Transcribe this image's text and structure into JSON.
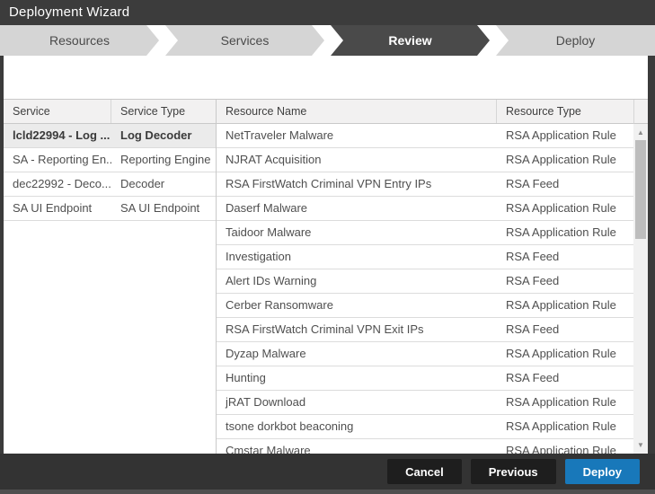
{
  "window": {
    "title": "Deployment Wizard"
  },
  "wizard": {
    "steps": [
      {
        "label": "Resources",
        "active": false
      },
      {
        "label": "Services",
        "active": false
      },
      {
        "label": "Review",
        "active": true
      },
      {
        "label": "Deploy",
        "active": false
      }
    ]
  },
  "services": {
    "columns": {
      "service": "Service",
      "service_type": "Service Type"
    },
    "rows": [
      {
        "service": "lcld22994 - Log ...",
        "type": "Log Decoder",
        "selected": true
      },
      {
        "service": "SA - Reporting En...",
        "type": "Reporting Engine",
        "selected": false
      },
      {
        "service": "dec22992 - Deco...",
        "type": "Decoder",
        "selected": false
      },
      {
        "service": "SA UI Endpoint",
        "type": "SA UI Endpoint",
        "selected": false
      }
    ]
  },
  "resources": {
    "columns": {
      "name": "Resource Name",
      "type": "Resource Type"
    },
    "rows": [
      {
        "name": "NetTraveler Malware",
        "type": "RSA Application Rule"
      },
      {
        "name": "NJRAT Acquisition",
        "type": "RSA Application Rule"
      },
      {
        "name": "RSA FirstWatch Criminal VPN Entry IPs",
        "type": "RSA Feed"
      },
      {
        "name": "Daserf Malware",
        "type": "RSA Application Rule"
      },
      {
        "name": "Taidoor Malware",
        "type": "RSA Application Rule"
      },
      {
        "name": "Investigation",
        "type": "RSA Feed"
      },
      {
        "name": "Alert IDs Warning",
        "type": "RSA Feed"
      },
      {
        "name": "Cerber Ransomware",
        "type": "RSA Application Rule"
      },
      {
        "name": "RSA FirstWatch Criminal VPN Exit IPs",
        "type": "RSA Feed"
      },
      {
        "name": "Dyzap Malware",
        "type": "RSA Application Rule"
      },
      {
        "name": "Hunting",
        "type": "RSA Feed"
      },
      {
        "name": "jRAT Download",
        "type": "RSA Application Rule"
      },
      {
        "name": "tsone dorkbot beaconing",
        "type": "RSA Application Rule"
      },
      {
        "name": "Cmstar Malware",
        "type": "RSA Application Rule"
      }
    ]
  },
  "scrollbar": {
    "up_glyph": "▲",
    "down_glyph": "▼"
  },
  "footer": {
    "cancel_label": "Cancel",
    "previous_label": "Previous",
    "deploy_label": "Deploy"
  },
  "colors": {
    "accent": "#1878ba",
    "titlebar": "#3c3c3c",
    "step_active": "#4a4a4a",
    "step_inactive": "#d5d5d5"
  }
}
